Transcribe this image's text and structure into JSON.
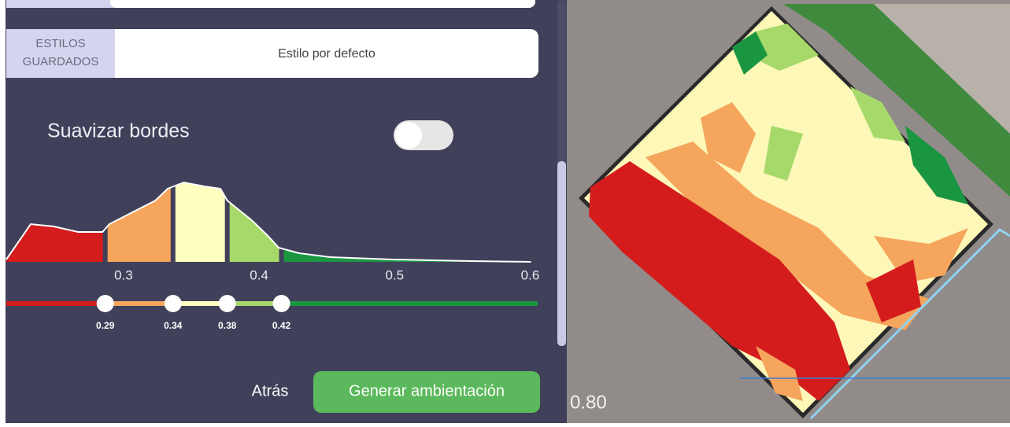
{
  "saved_styles": {
    "label_lines": [
      "ESTILOS",
      "GUARDADOS"
    ],
    "selected": "Estilo por defecto"
  },
  "smooth_edges": {
    "label": "Suavizar bordes",
    "enabled": false
  },
  "histogram": {
    "xlim": [
      0.217,
      0.609
    ],
    "xticks": [
      0.3,
      0.4,
      0.5,
      0.6
    ],
    "ylim": [
      0,
      110
    ],
    "x": [
      0.217,
      0.235,
      0.252,
      0.27,
      0.288,
      0.293,
      0.31,
      0.327,
      0.336,
      0.348,
      0.363,
      0.375,
      0.38,
      0.398,
      0.41,
      0.418,
      0.433,
      0.456,
      0.502,
      0.56,
      0.604
    ],
    "density": [
      3,
      48,
      45,
      38,
      38,
      48,
      63,
      78,
      93,
      101,
      96,
      93,
      78,
      53,
      33,
      18,
      11,
      6,
      3,
      1,
      0
    ],
    "thresholds": [
      0.29,
      0.34,
      0.38,
      0.42
    ],
    "colors": [
      "#d41c1c",
      "#f5a55c",
      "#ffffbf",
      "#a6d96a",
      "#1a9641"
    ]
  },
  "buttons": {
    "back": "Atrás",
    "generate": "Generar ambientación"
  },
  "map": {
    "value_label": "0.80"
  }
}
